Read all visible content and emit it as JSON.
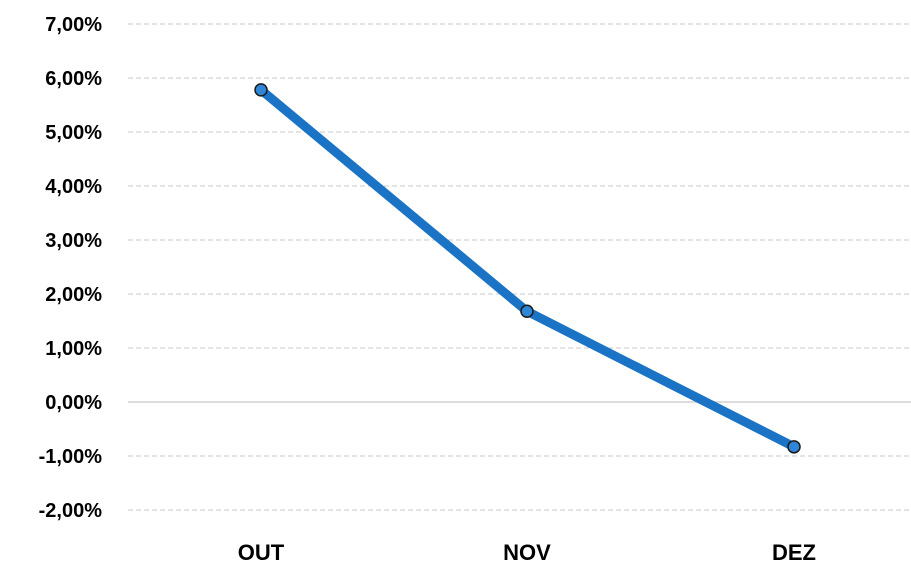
{
  "chart_data": {
    "type": "line",
    "categories": [
      "OUT",
      "NOV",
      "DEZ"
    ],
    "series": [
      {
        "values": [
          5.78,
          1.68,
          -0.83
        ]
      }
    ],
    "ylim": [
      -2,
      7
    ],
    "yticks": [
      7,
      6,
      5,
      4,
      3,
      2,
      1,
      0,
      -1,
      -2
    ],
    "ytick_labels": [
      "7,00%",
      "6,00%",
      "5,00%",
      "4,00%",
      "3,00%",
      "2,00%",
      "1,00%",
      "0,00%",
      "-1,00%",
      "-2,00%"
    ],
    "grid": true,
    "legend": "none",
    "colors": {
      "line": "#1a73c4",
      "marker_fill": "#2f86d6",
      "marker_edge": "#1a1a1a",
      "grid": "#c8c8c8",
      "zero_line": "#d0d0d0"
    }
  }
}
